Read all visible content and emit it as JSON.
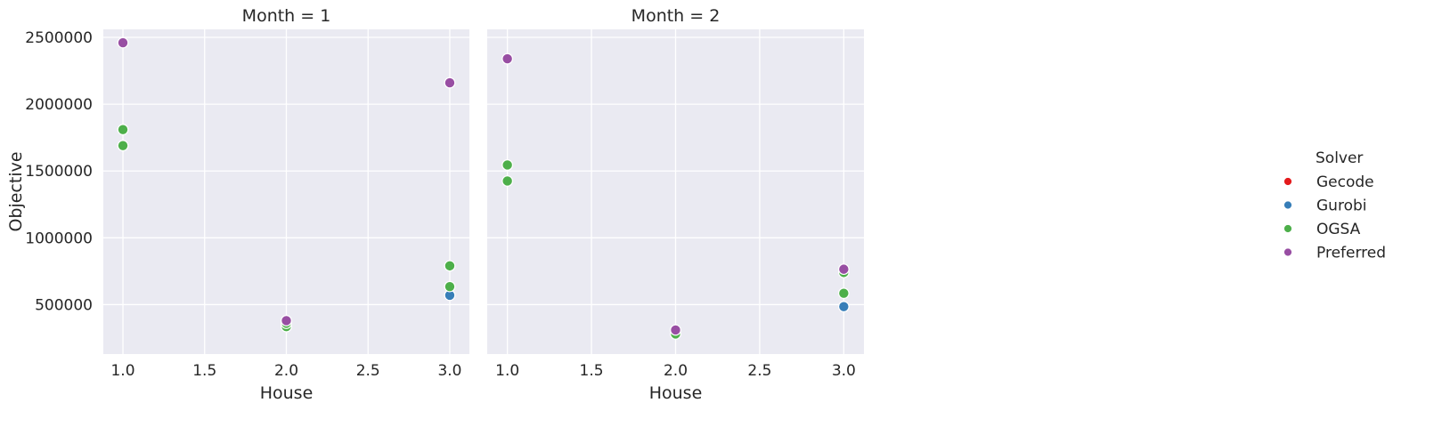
{
  "chart_data": {
    "type": "scatter",
    "xlabel": "House",
    "ylabel": "Objective",
    "xlim": [
      0.88,
      3.12
    ],
    "ylim": [
      130000,
      2560000
    ],
    "x_ticks": [
      "1.0",
      "1.5",
      "2.0",
      "2.5",
      "3.0"
    ],
    "x_tick_values": [
      1.0,
      1.5,
      2.0,
      2.5,
      3.0
    ],
    "y_ticks": [
      "500000",
      "1000000",
      "1500000",
      "2000000",
      "2500000"
    ],
    "y_tick_values": [
      500000,
      1000000,
      1500000,
      2000000,
      2500000
    ],
    "grid": true,
    "legend": {
      "title": "Solver",
      "placement": "right",
      "entries": [
        {
          "name": "Gecode",
          "color": "#e41a1c"
        },
        {
          "name": "Gurobi",
          "color": "#377eb8"
        },
        {
          "name": "OGSA",
          "color": "#4daf4a"
        },
        {
          "name": "Preferred",
          "color": "#984ea3"
        }
      ]
    },
    "panels": [
      {
        "title": "Month = 1",
        "series": [
          {
            "name": "Gecode",
            "color": "#e41a1c",
            "points": []
          },
          {
            "name": "Gurobi",
            "color": "#377eb8",
            "points": [
              [
                3.0,
                570000
              ]
            ]
          },
          {
            "name": "OGSA",
            "color": "#4daf4a",
            "points": [
              [
                1.0,
                1810000
              ],
              [
                1.0,
                1690000
              ],
              [
                2.0,
                335000
              ],
              [
                2.0,
                360000
              ],
              [
                3.0,
                790000
              ],
              [
                3.0,
                635000
              ]
            ]
          },
          {
            "name": "Preferred",
            "color": "#984ea3",
            "points": [
              [
                1.0,
                2460000
              ],
              [
                2.0,
                380000
              ],
              [
                3.0,
                2160000
              ]
            ]
          }
        ]
      },
      {
        "title": "Month = 2",
        "series": [
          {
            "name": "Gecode",
            "color": "#e41a1c",
            "points": []
          },
          {
            "name": "Gurobi",
            "color": "#377eb8",
            "points": [
              [
                3.0,
                485000
              ]
            ]
          },
          {
            "name": "OGSA",
            "color": "#4daf4a",
            "points": [
              [
                1.0,
                1545000
              ],
              [
                1.0,
                1425000
              ],
              [
                2.0,
                280000
              ],
              [
                3.0,
                740000
              ],
              [
                3.0,
                585000
              ]
            ]
          },
          {
            "name": "Preferred",
            "color": "#984ea3",
            "points": [
              [
                1.0,
                2340000
              ],
              [
                2.0,
                310000
              ],
              [
                3.0,
                765000
              ]
            ]
          }
        ]
      }
    ]
  }
}
